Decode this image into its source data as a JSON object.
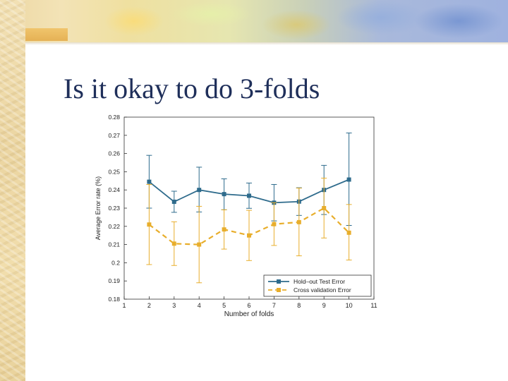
{
  "slide": {
    "title": "Is it okay to do 3-folds"
  },
  "colors": {
    "series_holdout": "#2e6b8c",
    "series_cv": "#e8ae2c",
    "axis": "#333333"
  },
  "chart_data": {
    "type": "line",
    "title": "",
    "xlabel": "Number of folds",
    "ylabel": "Average Error rate (%)",
    "xlim": [
      1,
      11
    ],
    "ylim": [
      0.18,
      0.28
    ],
    "x_ticks": [
      1,
      2,
      3,
      4,
      5,
      6,
      7,
      8,
      9,
      10,
      11
    ],
    "x_tick_labels": [
      "1",
      "2",
      "3",
      "4",
      "5",
      "6",
      "7",
      "8",
      "9",
      "10",
      "11"
    ],
    "y_ticks": [
      0.18,
      0.19,
      0.2,
      0.21,
      0.22,
      0.23,
      0.24,
      0.25,
      0.26,
      0.27,
      0.28
    ],
    "y_tick_labels": [
      "0.18",
      "0.19",
      "0.2",
      "0.21",
      "0.22",
      "0.23",
      "0.24",
      "0.25",
      "0.26",
      "0.27",
      "0.28"
    ],
    "grid": false,
    "legend_position": "bottom-right",
    "series": [
      {
        "name": "Hold–out Test Error",
        "style": "solid",
        "x": [
          2,
          3,
          4,
          5,
          6,
          7,
          8,
          9,
          10
        ],
        "values": [
          0.2445,
          0.2335,
          0.24,
          0.2377,
          0.2368,
          0.233,
          0.2336,
          0.24,
          0.2457
        ],
        "err_low": [
          0.23,
          0.2277,
          0.2279,
          0.2291,
          0.2299,
          0.223,
          0.226,
          0.2265,
          0.2205
        ],
        "err_high": [
          0.259,
          0.2393,
          0.2525,
          0.2461,
          0.2438,
          0.243,
          0.2412,
          0.2535,
          0.2713
        ]
      },
      {
        "name": "Cross validation Error",
        "style": "dashed",
        "x": [
          2,
          3,
          4,
          5,
          6,
          7,
          8,
          9,
          10
        ],
        "values": [
          0.221,
          0.2105,
          0.21,
          0.2183,
          0.215,
          0.2212,
          0.2223,
          0.23,
          0.2165
        ],
        "err_low": [
          0.199,
          0.1985,
          0.189,
          0.2075,
          0.2012,
          0.2095,
          0.2038,
          0.2136,
          0.2015
        ],
        "err_high": [
          0.243,
          0.2225,
          0.231,
          0.2291,
          0.2288,
          0.233,
          0.241,
          0.2465,
          0.232
        ]
      }
    ]
  }
}
